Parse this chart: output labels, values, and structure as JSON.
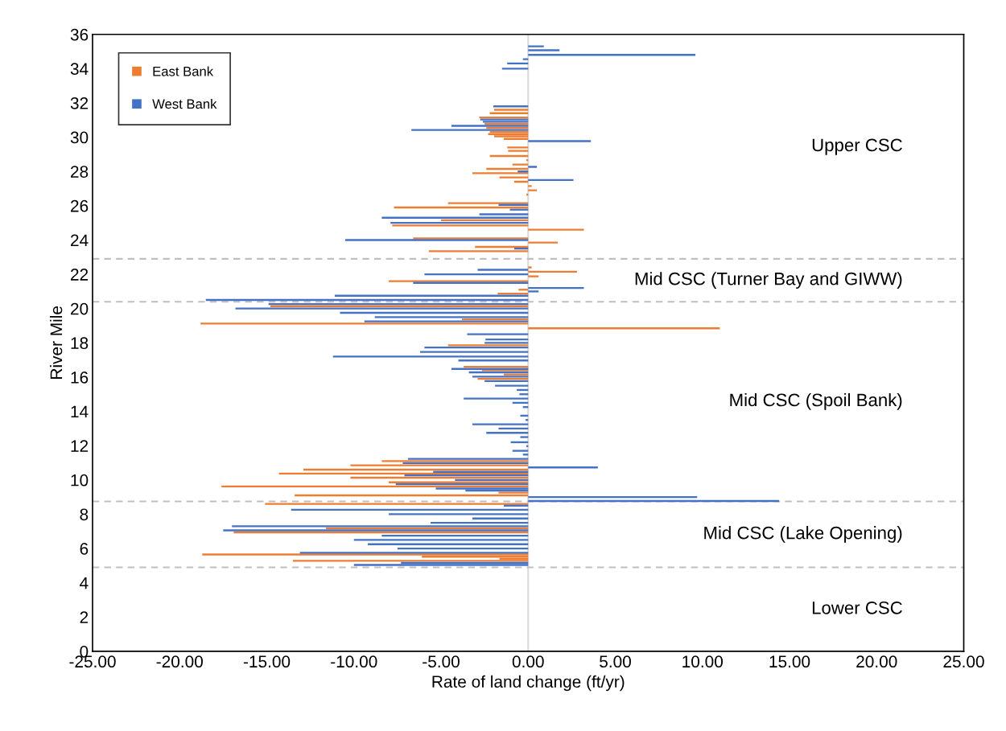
{
  "chart_data": {
    "type": "bar",
    "orientation": "horizontal",
    "xlabel": "Rate of land change (ft/yr)",
    "ylabel": "River Mile",
    "xlim": [
      -25,
      25
    ],
    "xticks": [
      {
        "value": -25,
        "label": "-25.00"
      },
      {
        "value": -20,
        "label": "-20.00"
      },
      {
        "value": -15,
        "label": "-15.00"
      },
      {
        "value": -10,
        "label": "-10.00"
      },
      {
        "value": -5,
        "label": "-5.00"
      },
      {
        "value": 0,
        "label": "0.00"
      },
      {
        "value": 5,
        "label": "5.00"
      },
      {
        "value": 10,
        "label": "10.00"
      },
      {
        "value": 15,
        "label": "15.00"
      },
      {
        "value": 20,
        "label": "20.00"
      },
      {
        "value": 25,
        "label": "25.00"
      }
    ],
    "ylim": [
      0,
      36
    ],
    "yticks": [
      0,
      2,
      4,
      6,
      8,
      10,
      12,
      14,
      16,
      18,
      20,
      22,
      24,
      26,
      28,
      30,
      32,
      34,
      36
    ],
    "grid": false,
    "legend": "top left",
    "series": [
      {
        "name": "East Bank",
        "color": "#ed7d31",
        "x": [
          31.6,
          31.4,
          31.15,
          30.78,
          30.54,
          30.3,
          30.18,
          30.05,
          29.9,
          29.4,
          29.2,
          28.9,
          28.66,
          28.4,
          28.15,
          27.9,
          27.65,
          27.4,
          27.15,
          26.9,
          26.65,
          26.15,
          25.9,
          25.15,
          24.85,
          24.6,
          24.1,
          23.85,
          23.6,
          23.35,
          22.4,
          22.15,
          21.88,
          21.6,
          21.1,
          20.87,
          20.14,
          19.37,
          19.12,
          18.85,
          17.86,
          16.6,
          16.4,
          16.15,
          15.9,
          11.1,
          10.85,
          10.6,
          10.37,
          10.13,
          9.86,
          9.62,
          9.26,
          9.1,
          8.6,
          7.18,
          6.94,
          5.65,
          5.52,
          5.4,
          5.28
        ],
        "values": [
          -1.95,
          -2.2,
          -2.8,
          -2.5,
          -2.4,
          -2.2,
          -2.3,
          -1.95,
          -1.4,
          -1.2,
          -1.15,
          -2.2,
          -0.1,
          -0.9,
          -2.4,
          -3.2,
          -1.65,
          -0.8,
          0.2,
          0.5,
          -0.1,
          -4.6,
          -7.7,
          -5.0,
          -7.8,
          3.2,
          -6.6,
          1.7,
          -3.05,
          -5.7,
          0.2,
          2.8,
          0.6,
          -8.0,
          -0.55,
          -1.75,
          -14.8,
          -3.8,
          -18.8,
          11.0,
          -4.6,
          -3.7,
          -2.65,
          -1.4,
          -2.9,
          -8.4,
          -10.2,
          -12.9,
          -14.3,
          -10.2,
          -8.0,
          -17.6,
          -1.7,
          -13.4,
          -15.1,
          -11.6,
          -16.9,
          -18.7,
          -6.1,
          -1.65,
          -13.5
        ]
      },
      {
        "name": "West Bank",
        "color": "#4472c4",
        "x": [
          35.3,
          35.07,
          34.8,
          34.55,
          34.3,
          34.0,
          31.8,
          31.03,
          30.9,
          30.66,
          30.42,
          29.77,
          28.27,
          28.0,
          27.5,
          26.05,
          25.77,
          25.5,
          25.3,
          25.0,
          24.0,
          23.5,
          22.26,
          22.0,
          21.5,
          21.2,
          21.0,
          20.75,
          20.5,
          20.26,
          20.0,
          19.75,
          19.5,
          19.25,
          18.5,
          18.2,
          18.0,
          17.73,
          17.47,
          17.2,
          16.97,
          16.48,
          16.28,
          16.03,
          15.77,
          15.5,
          15.25,
          15.0,
          14.75,
          14.5,
          14.25,
          13.75,
          13.5,
          13.25,
          13.0,
          12.75,
          12.5,
          12.2,
          11.97,
          11.7,
          11.48,
          11.23,
          10.98,
          10.73,
          10.47,
          10.27,
          10.0,
          9.75,
          9.5,
          9.38,
          9.0,
          8.77,
          8.5,
          8.26,
          8.0,
          7.75,
          7.5,
          7.3,
          7.06,
          6.75,
          6.5,
          6.25,
          6.0,
          5.75,
          5.16,
          5.04
        ],
        "values": [
          0.9,
          1.8,
          9.6,
          -0.3,
          -1.2,
          -1.5,
          -2.0,
          -2.75,
          -2.6,
          -4.4,
          -6.7,
          3.6,
          0.5,
          -0.6,
          2.6,
          -1.7,
          -1.05,
          -2.8,
          -8.4,
          -7.9,
          -10.5,
          -0.8,
          -2.9,
          -5.95,
          -6.6,
          3.2,
          0.6,
          -11.1,
          -18.5,
          -14.9,
          -16.8,
          -10.8,
          -8.8,
          -9.4,
          -3.5,
          -2.45,
          -2.5,
          -5.95,
          -6.2,
          -11.2,
          -4.0,
          -4.4,
          -3.4,
          -3.2,
          -2.5,
          -1.9,
          -0.65,
          -0.5,
          -3.7,
          -0.9,
          -0.3,
          -0.45,
          -0.15,
          -3.2,
          -1.7,
          -2.4,
          -0.45,
          -1.0,
          -0.1,
          -0.9,
          -0.3,
          -6.9,
          -7.2,
          4.0,
          -5.45,
          -7.1,
          -4.2,
          -7.6,
          -5.3,
          -3.6,
          9.7,
          14.4,
          -1.4,
          -13.6,
          -8.0,
          -3.2,
          -5.6,
          -17.0,
          -17.5,
          -8.4,
          -10.0,
          -9.2,
          -7.5,
          -13.1,
          -7.3,
          -10.0
        ]
      }
    ],
    "ref_lines": [
      {
        "axis": "x",
        "value": 0,
        "color": "#d9d9d9",
        "line_style": "solid"
      },
      {
        "axis": "y",
        "value": 22.9,
        "color": "#bfbfbf",
        "line_style": "dashed"
      },
      {
        "axis": "y",
        "value": 20.4,
        "color": "#bfbfbf",
        "line_style": "dashed"
      },
      {
        "axis": "y",
        "value": 8.75,
        "color": "#bfbfbf",
        "line_style": "dashed"
      },
      {
        "axis": "y",
        "value": 4.9,
        "color": "#bfbfbf",
        "line_style": "dashed"
      }
    ],
    "annotations": [
      "Upper CSC",
      "Mid CSC (Turner Bay and GIWW)",
      "Mid CSC (Spoil Bank)",
      "Mid CSC (Lake Opening)",
      "Lower CSC"
    ]
  }
}
